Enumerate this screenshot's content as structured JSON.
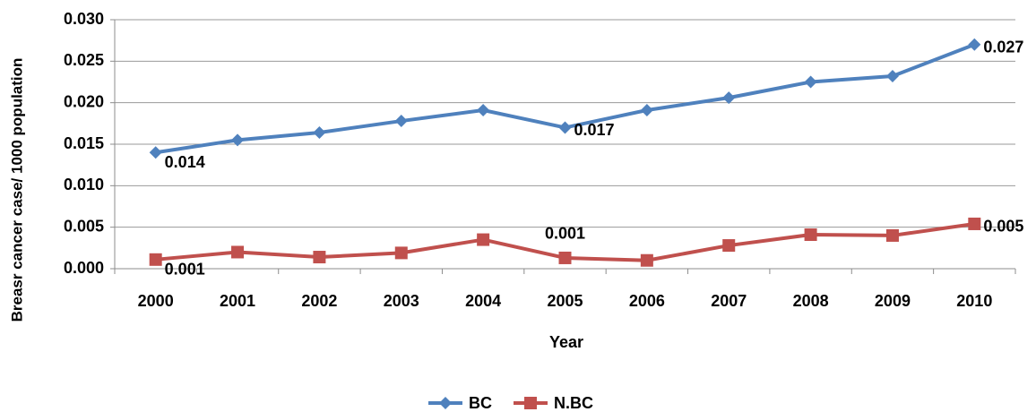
{
  "chart_data": {
    "type": "line",
    "x_label": "Year",
    "y_label": "Breasr cancer case/ 1000 population",
    "categories": [
      "2000",
      "2001",
      "2002",
      "2003",
      "2004",
      "2005",
      "2006",
      "2007",
      "2008",
      "2009",
      "2010"
    ],
    "series": [
      {
        "name": "BC",
        "color": "#4f81bd",
        "marker": "diamond",
        "values": [
          0.014,
          0.0155,
          0.0164,
          0.0178,
          0.0191,
          0.017,
          0.0191,
          0.0206,
          0.0225,
          0.0232,
          0.027
        ],
        "value_labels": [
          "0.014",
          null,
          null,
          null,
          null,
          "0.017",
          null,
          null,
          null,
          null,
          "0.027"
        ]
      },
      {
        "name": "N.BC",
        "color": "#c0504d",
        "marker": "square",
        "values": [
          0.0011,
          0.002,
          0.0014,
          0.0019,
          0.0035,
          0.0013,
          0.001,
          0.0028,
          0.0041,
          0.004,
          0.0054
        ],
        "value_labels": [
          "0.001",
          null,
          null,
          null,
          null,
          "0.001",
          null,
          null,
          null,
          null,
          "0.005"
        ]
      }
    ],
    "ylim": [
      0,
      0.03
    ],
    "yticks": [
      {
        "value": 0,
        "label": "0.000"
      },
      {
        "value": 0.005,
        "label": "0.005"
      },
      {
        "value": 0.01,
        "label": "0.010"
      },
      {
        "value": 0.015,
        "label": "0.015"
      },
      {
        "value": 0.02,
        "label": "0.020"
      },
      {
        "value": 0.025,
        "label": "0.025"
      },
      {
        "value": 0.03,
        "label": "0.030"
      }
    ],
    "grid": true,
    "legend": "bottom"
  }
}
